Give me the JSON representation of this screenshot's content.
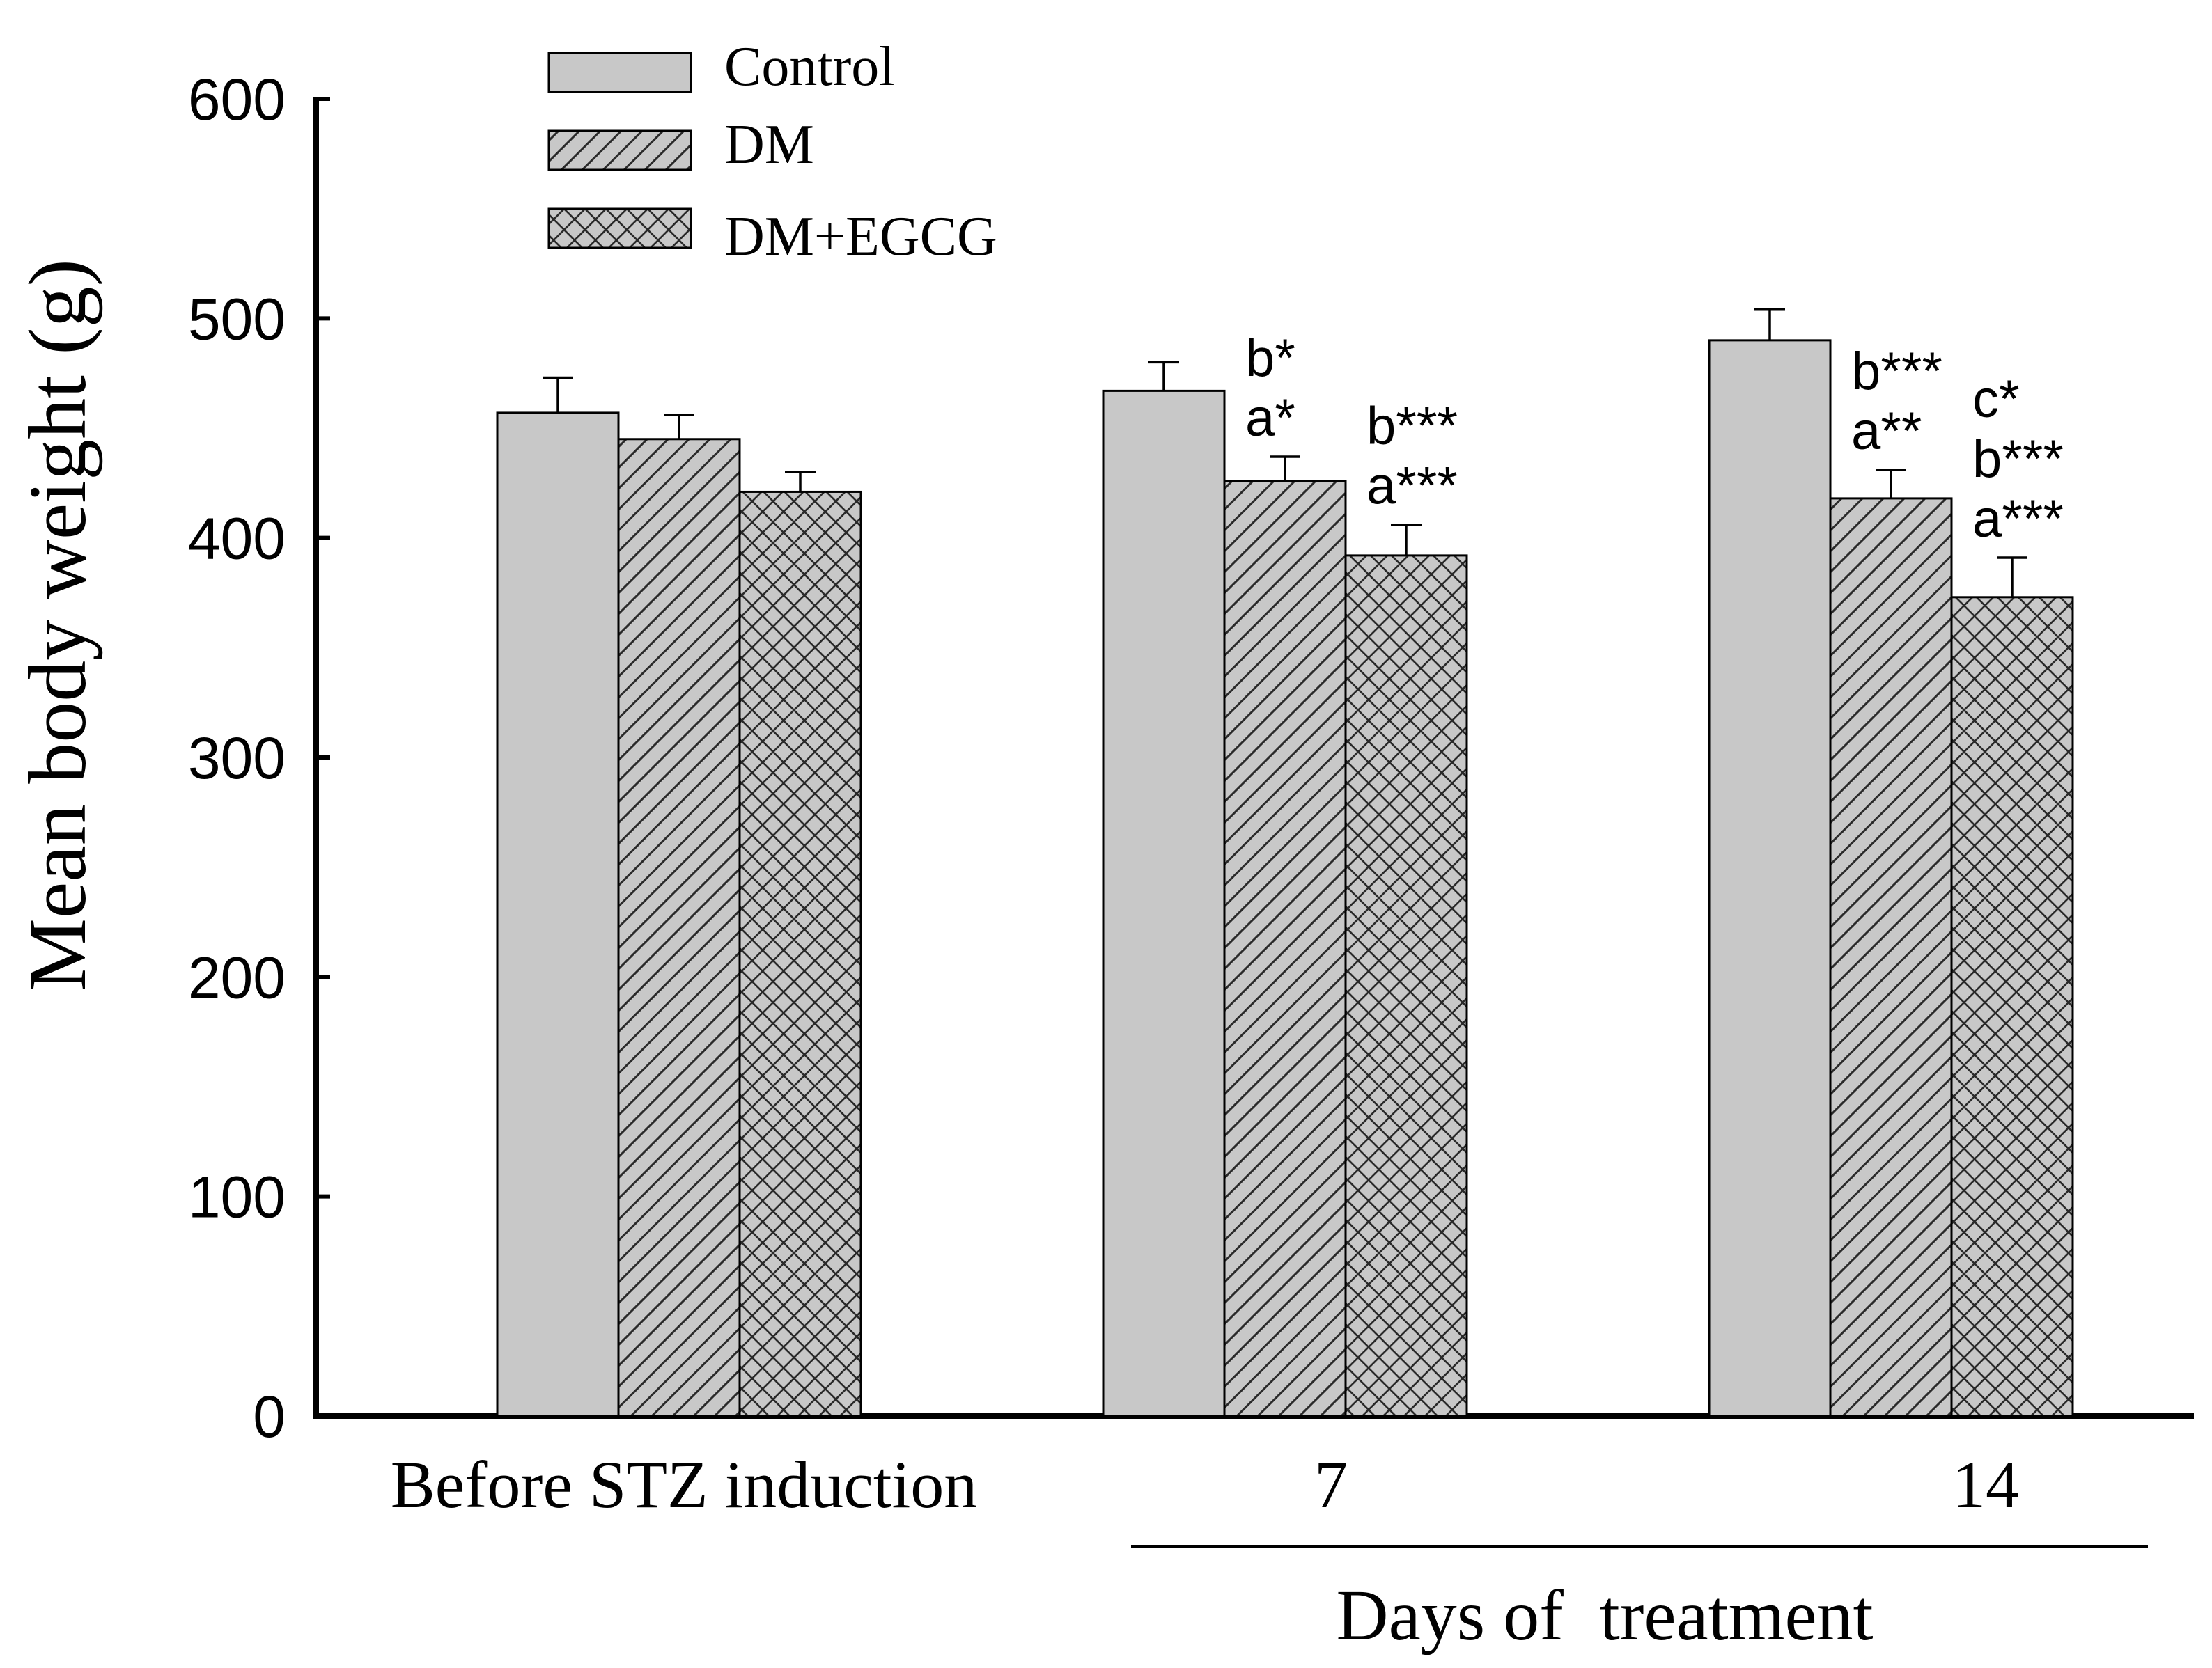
{
  "chart_data": {
    "type": "bar",
    "title": "",
    "ylabel": "Mean body weight (g)",
    "xlabel": "Days of  treatment",
    "ylim": [
      0,
      600
    ],
    "yticks": [
      0,
      100,
      200,
      300,
      400,
      500,
      600
    ],
    "categories": [
      "Before STZ induction",
      "7",
      "14"
    ],
    "series": [
      {
        "name": "Control",
        "fill": "solid",
        "values": [
          457,
          467,
          490
        ],
        "errors": [
          16,
          13,
          14
        ],
        "annotations": [
          [],
          [],
          []
        ]
      },
      {
        "name": "DM",
        "fill": "diagonal-hatch",
        "values": [
          445,
          426,
          418
        ],
        "errors": [
          11,
          11,
          13
        ],
        "annotations": [
          [],
          [
            "b*",
            "a*"
          ],
          [
            "b***",
            "a**"
          ]
        ]
      },
      {
        "name": "DM+EGCG",
        "fill": "cross-hatch",
        "values": [
          421,
          392,
          373
        ],
        "errors": [
          9,
          14,
          18
        ],
        "annotations": [
          [],
          [
            "b***",
            "a***"
          ],
          [
            "c*",
            "b***",
            "a***"
          ]
        ]
      }
    ],
    "legend_position": "top-left",
    "grid": false
  },
  "colors": {
    "bar_fill": "#c8c8c8",
    "hatch": "#2a2a2a",
    "axis": "#000000",
    "text": "#000000",
    "background": "#ffffff"
  }
}
